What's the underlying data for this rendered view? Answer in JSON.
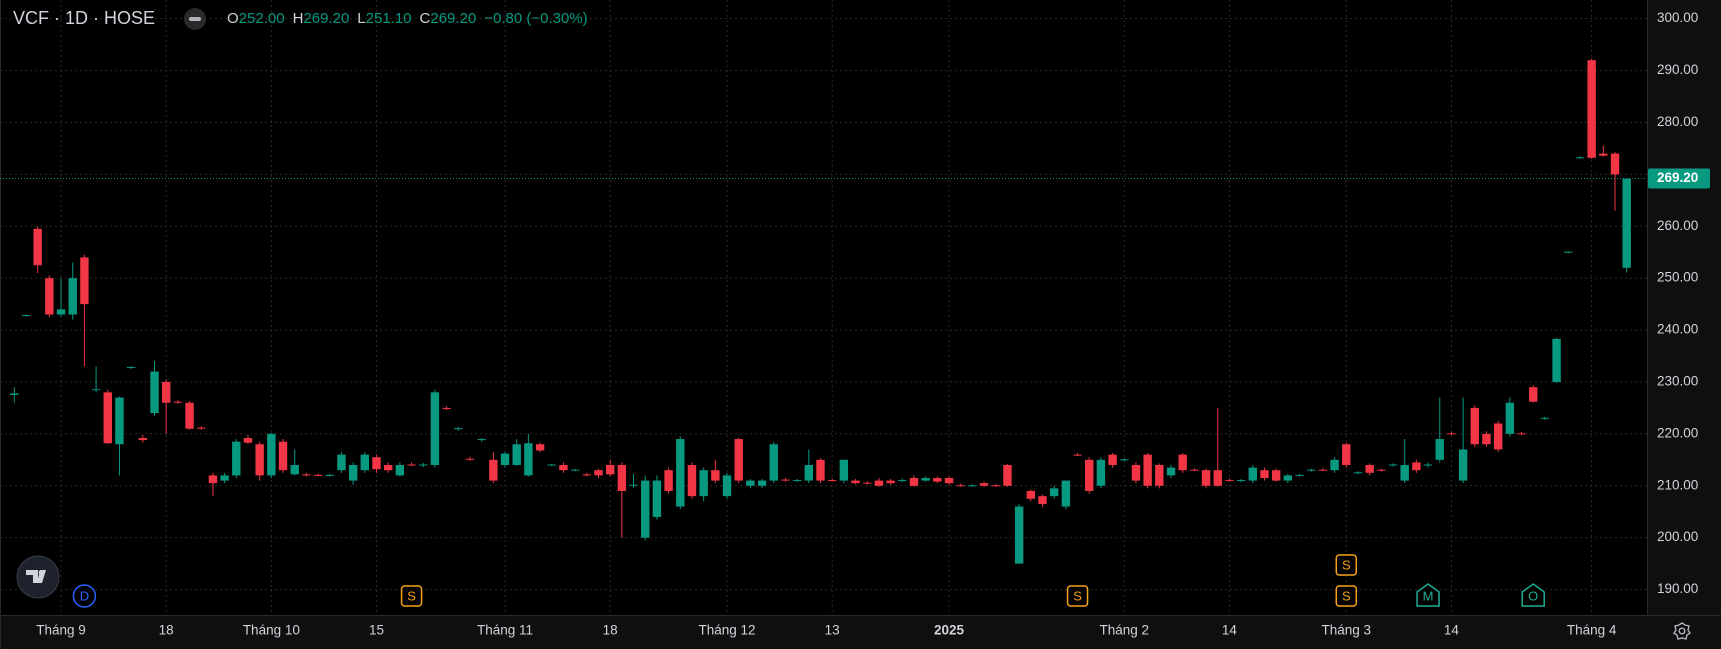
{
  "chart_data": {
    "type": "candlestick",
    "title": "VCF · 1D · HOSE",
    "legend_values": [
      {
        "key": "O",
        "value": "252.00"
      },
      {
        "key": "H",
        "value": "269.20"
      },
      {
        "key": "L",
        "value": "251.10"
      },
      {
        "key": "C",
        "value": "269.20"
      }
    ],
    "change": "−0.80 (−0.30%)",
    "up_color": "#089981",
    "down_color": "#f23645",
    "grid": true,
    "ylim": [
      185.1,
      303.6
    ],
    "yticks": [
      {
        "value": 190,
        "label": "190.00"
      },
      {
        "value": 200,
        "label": "200.00"
      },
      {
        "value": 210,
        "label": "210.00"
      },
      {
        "value": 220,
        "label": "220.00"
      },
      {
        "value": 230,
        "label": "230.00"
      },
      {
        "value": 240,
        "label": "240.00"
      },
      {
        "value": 250,
        "label": "250.00"
      },
      {
        "value": 260,
        "label": "260.00"
      },
      {
        "value": 270,
        "label": "270.00"
      },
      {
        "value": 280,
        "label": "280.00"
      },
      {
        "value": 290,
        "label": "290.00"
      },
      {
        "value": 300,
        "label": "300.00"
      }
    ],
    "last_price": {
      "value": 269.2,
      "label": "269.20"
    },
    "categories": [
      null,
      null,
      null,
      null,
      "Tháng 9",
      null,
      null,
      null,
      null,
      null,
      null,
      null,
      null,
      "18",
      null,
      null,
      null,
      null,
      null,
      null,
      null,
      null,
      "Tháng 10",
      null,
      null,
      null,
      null,
      null,
      null,
      null,
      null,
      "15",
      null,
      null,
      null,
      null,
      null,
      null,
      null,
      null,
      null,
      null,
      "Tháng 11",
      null,
      null,
      null,
      null,
      null,
      null,
      null,
      null,
      "18",
      null,
      null,
      null,
      null,
      null,
      null,
      null,
      null,
      null,
      "Tháng 12",
      null,
      null,
      null,
      null,
      null,
      null,
      null,
      null,
      "13",
      null,
      null,
      null,
      null,
      null,
      null,
      null,
      null,
      null,
      "2025",
      null,
      null,
      null,
      null,
      null,
      null,
      null,
      null,
      null,
      null,
      null,
      null,
      null,
      null,
      "Tháng 2",
      null,
      null,
      null,
      null,
      null,
      null,
      null,
      null,
      "14",
      null,
      null,
      null,
      null,
      null,
      null,
      null,
      null,
      null,
      "Tháng 3",
      null,
      null,
      null,
      null,
      null,
      null,
      null,
      null,
      "14",
      null,
      null,
      null,
      null,
      null,
      null,
      null,
      null,
      null,
      null,
      null,
      "Tháng 4",
      null,
      null,
      null
    ],
    "open": [
      227.5,
      242.8,
      259.5,
      250,
      243,
      243,
      254,
      228.5,
      228,
      218,
      232.8,
      219.2,
      224,
      230,
      226.2,
      226,
      221.2,
      212,
      211,
      212,
      219.2,
      218,
      212,
      218.5,
      212.2,
      212.2,
      212.1,
      212,
      213,
      211,
      213,
      215.5,
      214,
      212,
      214.1,
      214,
      214,
      225,
      221,
      215.2,
      218.8,
      215,
      214,
      214,
      212,
      218,
      214,
      214,
      213,
      212.2,
      213,
      214,
      214,
      210,
      200,
      204,
      213,
      206,
      214,
      208,
      213,
      208,
      219,
      210,
      210,
      211,
      211.2,
      211,
      211,
      215,
      211.1,
      211,
      211,
      210.6,
      211,
      211,
      211,
      211.5,
      211,
      211.5,
      211.5,
      210.1,
      210,
      210.5,
      210.1,
      214,
      195,
      209,
      208,
      208,
      206,
      216,
      215,
      210,
      216,
      215,
      214,
      216,
      214,
      212,
      216,
      213.1,
      213,
      213,
      211.1,
      211,
      211,
      213,
      213,
      211,
      212,
      213,
      213.1,
      213,
      218,
      212.5,
      214,
      213.1,
      214,
      211,
      214.5,
      214,
      215,
      220.1,
      211,
      225,
      220,
      222,
      220,
      220.1,
      229,
      223,
      230,
      255,
      273.2,
      292,
      274,
      274,
      252
    ],
    "high": [
      229,
      243,
      260,
      250.5,
      250,
      253,
      254.5,
      233,
      228.5,
      227.2,
      233,
      219.8,
      234,
      230.5,
      226.5,
      226.3,
      221.5,
      212.5,
      212.5,
      219,
      219.8,
      218.5,
      220.2,
      219,
      217,
      212.5,
      212.4,
      212.3,
      216.5,
      214.5,
      216.5,
      216,
      214.5,
      214.5,
      214.5,
      214.4,
      228.5,
      225.3,
      221.3,
      215.6,
      219.2,
      216.5,
      216.5,
      219,
      220,
      218.3,
      214.2,
      214.5,
      213.3,
      212.5,
      213.3,
      215,
      214.5,
      212.3,
      212,
      212,
      213.5,
      219.5,
      214.5,
      213.5,
      215,
      212.5,
      219.3,
      211.3,
      211.3,
      218.5,
      211.5,
      211.3,
      217,
      215.3,
      211.4,
      215,
      211.3,
      210.9,
      211.5,
      211.3,
      211.4,
      212,
      211.8,
      211.8,
      211.8,
      210.4,
      210.3,
      210.8,
      210.3,
      214.2,
      206.5,
      209.3,
      208.3,
      210,
      211,
      216.3,
      215.5,
      215.5,
      216.3,
      215.3,
      214.5,
      216.3,
      214.3,
      214,
      216.3,
      213.4,
      213.3,
      225,
      211.4,
      211.3,
      214,
      213.5,
      213.3,
      212.3,
      212.3,
      213.3,
      213.4,
      215.5,
      218.3,
      212.8,
      214.3,
      213.3,
      214.3,
      219,
      215,
      214.5,
      227,
      220.4,
      227,
      225.5,
      220.5,
      222.5,
      227,
      220.4,
      229.3,
      223.3,
      238.5,
      255.2,
      273.5,
      292.3,
      275.5,
      274.3,
      269.2
    ],
    "low": [
      226,
      242.6,
      251,
      242.5,
      242.5,
      242,
      233,
      228,
      218,
      212,
      232.5,
      218.3,
      223.5,
      220,
      225.8,
      220.8,
      220.8,
      208,
      210.5,
      211.5,
      218,
      211,
      211.5,
      212.5,
      212,
      211.8,
      211.8,
      211.8,
      212.5,
      210.2,
      212.5,
      212.5,
      212.5,
      211.8,
      213.8,
      213.6,
      213.5,
      224.6,
      220.6,
      214.8,
      218.5,
      210.5,
      213.5,
      213.8,
      211.8,
      216.5,
      213.8,
      212.5,
      212.8,
      211.8,
      211.5,
      211.8,
      200,
      209.6,
      199.5,
      203.5,
      208.5,
      205.5,
      207.5,
      207,
      210.5,
      207.5,
      210.5,
      209.5,
      209.5,
      210.5,
      210.8,
      210.8,
      210.5,
      210.5,
      210.8,
      210.5,
      210.3,
      210.2,
      209.8,
      210.2,
      210.7,
      209.8,
      210.8,
      210.5,
      210.2,
      209.8,
      209.8,
      209.8,
      209.8,
      209.8,
      195,
      207,
      206,
      207.5,
      205.5,
      215.7,
      208.5,
      209.5,
      213.5,
      214.7,
      210.5,
      209.5,
      209.5,
      211.5,
      212.5,
      212.8,
      209.5,
      209.8,
      210.8,
      210.7,
      210.5,
      211,
      210.8,
      210.5,
      211.8,
      212.7,
      212.8,
      212.5,
      213.5,
      212.2,
      212,
      212.7,
      213.7,
      210.5,
      212.5,
      213.5,
      214.5,
      219.8,
      210.5,
      217.5,
      217.5,
      216.5,
      219.5,
      219.8,
      226,
      222.7,
      229.8,
      254.8,
      273,
      273,
      273.4,
      263,
      251.1
    ],
    "close": [
      227.8,
      242.9,
      252.5,
      243,
      244,
      250,
      245,
      228.6,
      218.2,
      227,
      232.9,
      218.8,
      232,
      226,
      226,
      221,
      221,
      210.5,
      212,
      218.5,
      218.3,
      212,
      220,
      213,
      214,
      212,
      212,
      212.1,
      216,
      214,
      216,
      213.2,
      213,
      214,
      214,
      214.1,
      228,
      224.8,
      221.1,
      215,
      219,
      211,
      216.2,
      218,
      218.2,
      216.8,
      214.1,
      213,
      213.1,
      212,
      212,
      212.2,
      209,
      210.2,
      211,
      211,
      209,
      219,
      208,
      213,
      211,
      212,
      211,
      211,
      211,
      218,
      211,
      211.1,
      214,
      211,
      211,
      215,
      210.5,
      210.5,
      210,
      210.5,
      211.1,
      210,
      211.5,
      210.8,
      210.5,
      210,
      210.1,
      210,
      210,
      210,
      206,
      207.5,
      206.5,
      209.5,
      211,
      215.9,
      209,
      215,
      214,
      215.1,
      211,
      210,
      210,
      213.5,
      213,
      213,
      210,
      210,
      211,
      211.1,
      213.5,
      211.5,
      211,
      212,
      212.1,
      213.1,
      213,
      215,
      214,
      212.6,
      212.5,
      213,
      214.1,
      214,
      213,
      214.1,
      219,
      220,
      217,
      218,
      218,
      217,
      226,
      220,
      226.2,
      223.1,
      238.3,
      255.1,
      273.3,
      273.2,
      273.6,
      270,
      269.2
    ],
    "events": [
      {
        "label": "D",
        "at": 6,
        "shape": "circle",
        "color": "#2962ff"
      },
      {
        "label": "S",
        "at": 34,
        "shape": "square",
        "color": "#f7a21b"
      },
      {
        "label": "S",
        "at": 91,
        "shape": "square",
        "color": "#f7a21b"
      },
      {
        "label": "S",
        "at": 114,
        "shape": "square",
        "color": "#f7a21b"
      },
      {
        "label": "S",
        "at": 114,
        "shape": "square",
        "color": "#f7a21b"
      },
      {
        "label": "M",
        "at": 121,
        "shape": "pentagon",
        "color": "#22ab94"
      },
      {
        "label": "O",
        "at": 130,
        "shape": "pentagon",
        "color": "#22ab94"
      }
    ]
  }
}
